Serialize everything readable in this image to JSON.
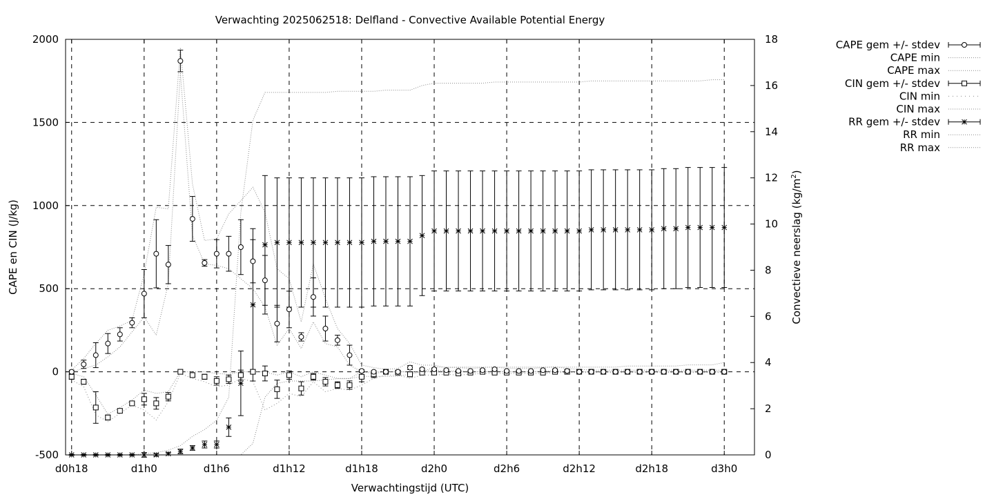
{
  "chart_data": {
    "type": "line",
    "title": "Verwachting 2025062518: Delfland - Convective Available Potential Energy",
    "xlabel": "Verwachtingstijd (UTC)",
    "ylabel_left": "CAPE en CIN (J/kg)",
    "ylabel_right_main": "Convectieve neerslag (kg/m",
    "ylabel_right_sup": "2",
    "ylabel_right_tail": ")",
    "xlim": [
      -0.5,
      56.5
    ],
    "ylim_left": [
      -500,
      2000
    ],
    "ylim_right": [
      0,
      18
    ],
    "x_ticks": [
      {
        "x": 0,
        "label": "d0h18"
      },
      {
        "x": 6,
        "label": "d1h0"
      },
      {
        "x": 12,
        "label": "d1h6"
      },
      {
        "x": 18,
        "label": "d1h12"
      },
      {
        "x": 24,
        "label": "d1h18"
      },
      {
        "x": 30,
        "label": "d2h0"
      },
      {
        "x": 36,
        "label": "d2h6"
      },
      {
        "x": 42,
        "label": "d2h12"
      },
      {
        "x": 48,
        "label": "d2h18"
      },
      {
        "x": 54,
        "label": "d3h0"
      }
    ],
    "y_ticks_left": [
      {
        "y": -500,
        "label": "-500"
      },
      {
        "y": 0,
        "label": "0"
      },
      {
        "y": 500,
        "label": "500"
      },
      {
        "y": 1000,
        "label": "1000"
      },
      {
        "y": 1500,
        "label": "1500"
      },
      {
        "y": 2000,
        "label": "2000"
      }
    ],
    "y_ticks_right": [
      {
        "y": 0,
        "label": "0"
      },
      {
        "y": 2,
        "label": "2"
      },
      {
        "y": 4,
        "label": "4"
      },
      {
        "y": 6,
        "label": "6"
      },
      {
        "y": 8,
        "label": "8"
      },
      {
        "y": 10,
        "label": "10"
      },
      {
        "y": 12,
        "label": "12"
      },
      {
        "y": 14,
        "label": "14"
      },
      {
        "y": 16,
        "label": "16"
      },
      {
        "y": 18,
        "label": "18"
      }
    ],
    "grid": true,
    "legend_position": "outside-top-right",
    "legend": [
      {
        "label": "CAPE gem +/- stdev",
        "style": "errorbar",
        "marker": "circle"
      },
      {
        "label": "CAPE min",
        "style": "dotted"
      },
      {
        "label": "CAPE max",
        "style": "dotted"
      },
      {
        "label": "CIN gem +/- stdev",
        "style": "errorbar",
        "marker": "square"
      },
      {
        "label": "CIN min",
        "style": "dotted-sparse"
      },
      {
        "label": "CIN max",
        "style": "dotted"
      },
      {
        "label": "RR gem +/- stdev",
        "style": "errorbar",
        "marker": "star"
      },
      {
        "label": "RR min",
        "style": "dotted"
      },
      {
        "label": "RR max",
        "style": "dotted"
      }
    ],
    "cape_x": [
      0,
      1,
      2,
      3,
      4,
      5,
      6,
      7,
      8,
      9,
      10,
      11,
      12,
      13,
      14,
      15,
      16,
      17,
      18,
      19,
      20,
      21,
      22,
      23
    ],
    "cape_mean": [
      0,
      45,
      100,
      170,
      225,
      295,
      470,
      710,
      645,
      1870,
      920,
      655,
      710,
      710,
      750,
      665,
      550,
      290,
      375,
      210,
      450,
      260,
      190,
      100
    ],
    "cape_std": [
      10,
      25,
      75,
      60,
      40,
      30,
      145,
      205,
      115,
      65,
      135,
      20,
      85,
      105,
      165,
      130,
      150,
      110,
      110,
      25,
      115,
      75,
      30,
      60
    ],
    "cape_tail_x": [
      24,
      25,
      26,
      27,
      28,
      29,
      30,
      31,
      32,
      33,
      34,
      35,
      36,
      37,
      38,
      39,
      40,
      41,
      42,
      43,
      44,
      45,
      46,
      47,
      48,
      49,
      50,
      51,
      52,
      53,
      54
    ],
    "cape_tail_mean": [
      5,
      0,
      0,
      0,
      25,
      15,
      15,
      10,
      5,
      5,
      10,
      15,
      5,
      5,
      5,
      10,
      10,
      5,
      0,
      0,
      0,
      0,
      0,
      0,
      0,
      0,
      0,
      0,
      0,
      0,
      0
    ],
    "cape_tail_std": [
      8,
      6,
      4,
      4,
      12,
      8,
      8,
      6,
      5,
      5,
      6,
      8,
      5,
      5,
      5,
      6,
      6,
      5,
      3,
      2,
      2,
      2,
      2,
      2,
      2,
      2,
      2,
      2,
      2,
      2,
      2
    ],
    "cape_min": [
      0,
      20,
      40,
      90,
      150,
      240,
      330,
      220,
      530,
      1800,
      820,
      650,
      640,
      620,
      560,
      500,
      390,
      160,
      260,
      140,
      300,
      170,
      150,
      40,
      0,
      -10,
      0,
      0,
      0,
      0,
      10,
      5,
      5,
      0,
      0,
      5,
      0,
      0,
      0,
      5,
      5,
      0,
      0,
      0,
      0,
      0,
      0,
      0,
      0,
      0,
      0,
      0,
      0,
      0,
      0
    ],
    "cape_max": [
      10,
      80,
      170,
      250,
      275,
      310,
      590,
      990,
      980,
      1950,
      1130,
      790,
      800,
      950,
      1030,
      1110,
      960,
      620,
      560,
      300,
      650,
      440,
      260,
      170,
      40,
      25,
      15,
      20,
      60,
      40,
      40,
      25,
      25,
      20,
      25,
      30,
      20,
      20,
      20,
      25,
      30,
      20,
      15,
      10,
      10,
      10,
      10,
      10,
      10,
      10,
      10,
      10,
      10,
      10,
      10
    ],
    "cin_x": [
      0,
      1,
      2,
      3,
      4,
      5,
      6,
      7,
      8,
      9,
      10,
      11,
      12,
      13,
      14,
      15,
      16,
      17,
      18,
      19,
      20,
      21,
      22,
      23,
      24,
      25,
      26,
      27,
      28,
      29,
      30,
      31,
      32,
      33,
      34,
      35,
      36,
      37,
      38,
      39,
      40,
      41,
      42,
      43,
      44,
      45,
      46,
      47,
      48,
      49,
      50,
      51,
      52,
      53,
      54
    ],
    "cin_mean": [
      -30,
      -60,
      -215,
      -275,
      -235,
      -190,
      -165,
      -190,
      -150,
      0,
      -20,
      -30,
      -55,
      -45,
      -20,
      0,
      -10,
      -105,
      -20,
      -100,
      -30,
      -60,
      -80,
      -80,
      -30,
      -15,
      0,
      -5,
      -15,
      -5,
      -5,
      -5,
      -10,
      -5,
      0,
      -5,
      -5,
      -5,
      -5,
      -5,
      0,
      0,
      0,
      0,
      0,
      0,
      0,
      0,
      0,
      0,
      0,
      0,
      0,
      0,
      0
    ],
    "cin_std": [
      15,
      15,
      95,
      15,
      10,
      10,
      35,
      35,
      25,
      5,
      10,
      15,
      25,
      25,
      30,
      10,
      45,
      55,
      25,
      40,
      20,
      25,
      20,
      25,
      30,
      20,
      10,
      10,
      15,
      10,
      10,
      8,
      8,
      8,
      5,
      5,
      5,
      5,
      5,
      5,
      3,
      2,
      2,
      2,
      2,
      2,
      2,
      2,
      2,
      2,
      2,
      2,
      2,
      2,
      2
    ],
    "cin_min": [
      -50,
      -90,
      -260,
      -300,
      -250,
      -200,
      -230,
      -290,
      -180,
      -10,
      -40,
      -60,
      -90,
      -80,
      -40,
      -60,
      -230,
      -190,
      -130,
      -150,
      -60,
      -120,
      -100,
      -110,
      -80,
      -40,
      -20,
      -20,
      -40,
      -20,
      -20,
      -15,
      -20,
      -15,
      -10,
      -10,
      -10,
      -10,
      -10,
      -10,
      -5,
      -5,
      -5,
      -5,
      -5,
      -5,
      -5,
      -5,
      -5,
      -5,
      -5,
      -5,
      -5,
      -5,
      -5
    ],
    "cin_max": [
      -10,
      -30,
      -140,
      -255,
      -215,
      -170,
      -110,
      -130,
      -120,
      0,
      0,
      0,
      -10,
      -15,
      0,
      0,
      0,
      -20,
      0,
      -30,
      0,
      -20,
      -40,
      -40,
      0,
      0,
      0,
      0,
      0,
      0,
      0,
      0,
      0,
      0,
      0,
      0,
      0,
      0,
      0,
      0,
      0,
      0,
      0,
      0,
      0,
      0,
      0,
      0,
      0,
      0,
      0,
      0,
      0,
      0,
      0
    ],
    "rr_x": [
      0,
      1,
      2,
      3,
      4,
      5,
      6,
      7,
      8,
      9,
      10,
      11,
      12,
      13,
      14,
      15,
      16,
      17,
      18,
      19,
      20,
      21,
      22,
      23,
      24,
      25,
      26,
      27,
      28,
      29,
      30,
      31,
      32,
      33,
      34,
      35,
      36,
      37,
      38,
      39,
      40,
      41,
      42,
      43,
      44,
      45,
      46,
      47,
      48,
      49,
      50,
      51,
      52,
      53,
      54
    ],
    "rr_mean": [
      0,
      0,
      0,
      0,
      0,
      0,
      0,
      0,
      0.05,
      0.15,
      0.3,
      0.45,
      0.45,
      1.2,
      3.1,
      6.5,
      9.1,
      9.2,
      9.2,
      9.2,
      9.2,
      9.2,
      9.2,
      9.2,
      9.2,
      9.25,
      9.25,
      9.25,
      9.25,
      9.5,
      9.7,
      9.7,
      9.7,
      9.7,
      9.7,
      9.7,
      9.7,
      9.7,
      9.7,
      9.7,
      9.7,
      9.7,
      9.7,
      9.75,
      9.75,
      9.75,
      9.75,
      9.75,
      9.75,
      9.8,
      9.8,
      9.85,
      9.85,
      9.85,
      9.85
    ],
    "rr_std": [
      0.02,
      0.02,
      0.02,
      0.02,
      0.02,
      0.02,
      0.1,
      0.05,
      0.05,
      0.1,
      0.1,
      0.15,
      0.15,
      0.4,
      1.4,
      3.3,
      3.0,
      2.8,
      2.8,
      2.8,
      2.8,
      2.8,
      2.8,
      2.8,
      2.8,
      2.8,
      2.8,
      2.8,
      2.8,
      2.6,
      2.6,
      2.6,
      2.6,
      2.6,
      2.6,
      2.6,
      2.6,
      2.6,
      2.6,
      2.6,
      2.6,
      2.6,
      2.6,
      2.6,
      2.6,
      2.6,
      2.6,
      2.6,
      2.6,
      2.6,
      2.6,
      2.6,
      2.6,
      2.6,
      2.6
    ],
    "rr_min": [
      0,
      0,
      0,
      0,
      0,
      0,
      0,
      0,
      0,
      0,
      0,
      0,
      0,
      0,
      0,
      0.5,
      2.5,
      3.1,
      3.2,
      3.2,
      3.2,
      3.25,
      3.3,
      3.3,
      3.4,
      3.4,
      3.4,
      3.4,
      3.5,
      3.6,
      3.8,
      3.8,
      3.8,
      3.8,
      3.8,
      3.8,
      3.8,
      3.8,
      3.8,
      3.8,
      3.8,
      3.8,
      3.8,
      3.8,
      3.8,
      3.8,
      3.85,
      3.85,
      3.85,
      3.85,
      3.85,
      3.9,
      3.9,
      3.9,
      4.0
    ],
    "rr_max": [
      0,
      0,
      0,
      0,
      0,
      0,
      0.05,
      0.1,
      0.2,
      0.4,
      0.8,
      1.1,
      1.5,
      2.5,
      10.5,
      14.5,
      15.7,
      15.7,
      15.7,
      15.7,
      15.7,
      15.7,
      15.75,
      15.75,
      15.75,
      15.75,
      15.8,
      15.8,
      15.8,
      16.0,
      16.1,
      16.1,
      16.1,
      16.1,
      16.1,
      16.15,
      16.15,
      16.15,
      16.15,
      16.15,
      16.15,
      16.15,
      16.15,
      16.2,
      16.2,
      16.2,
      16.2,
      16.2,
      16.2,
      16.2,
      16.2,
      16.2,
      16.2,
      16.25,
      16.25
    ]
  }
}
